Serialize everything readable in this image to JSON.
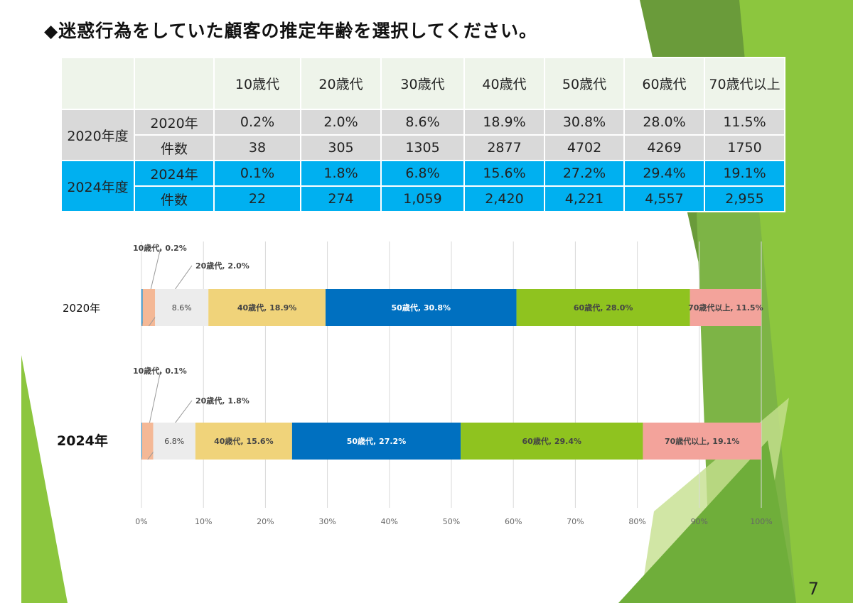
{
  "title": "◆迷惑行為をしていた顧客の推定年齢を選択してください。",
  "page_number": "7",
  "table": {
    "headers": [
      "",
      "",
      "10歳代",
      "20歳代",
      "30歳代",
      "40歳代",
      "50歳代",
      "60歳代",
      "70歳代以上"
    ],
    "groups": [
      {
        "label": "2020年度",
        "rows": [
          [
            "2020年",
            "0.2%",
            "2.0%",
            "8.6%",
            "18.9%",
            "30.8%",
            "28.0%",
            "11.5%"
          ],
          [
            "件数",
            "38",
            "305",
            "1305",
            "2877",
            "4702",
            "4269",
            "1750"
          ]
        ]
      },
      {
        "label": "2024年度",
        "rows": [
          [
            "2024年",
            "0.1%",
            "1.8%",
            "6.8%",
            "15.6%",
            "27.2%",
            "29.4%",
            "19.1%"
          ],
          [
            "件数",
            "22",
            "274",
            "1,059",
            "2,420",
            "4,221",
            "4,557",
            "2,955"
          ]
        ]
      }
    ]
  },
  "chart_data": {
    "type": "bar",
    "orientation": "horizontal",
    "stacked": true,
    "categories": [
      "2020年",
      "2024年"
    ],
    "series": [
      {
        "name": "10歳代",
        "values": [
          0.2,
          0.1
        ],
        "color": "#1f8fd0"
      },
      {
        "name": "20歳代",
        "values": [
          2.0,
          1.8
        ],
        "color": "#f4b896"
      },
      {
        "name": "30歳代",
        "values": [
          8.6,
          6.8
        ],
        "color": "#ececec"
      },
      {
        "name": "40歳代",
        "values": [
          18.9,
          15.6
        ],
        "color": "#f0d37a"
      },
      {
        "name": "50歳代",
        "values": [
          30.8,
          27.2
        ],
        "color": "#0070c0"
      },
      {
        "name": "60歳代",
        "values": [
          28.0,
          29.4
        ],
        "color": "#8fc31f"
      },
      {
        "name": "70歳代以上",
        "values": [
          11.5,
          19.1
        ],
        "color": "#f3a39b"
      }
    ],
    "data_labels": [
      [
        "10歳代, 0.2%",
        "20歳代, 2.0%",
        "8.6%",
        "40歳代, 18.9%",
        "50歳代, 30.8%",
        "60歳代, 28.0%",
        "70歳代以上, 11.5%"
      ],
      [
        "10歳代, 0.1%",
        "20歳代, 1.8%",
        "6.8%",
        "40歳代, 15.6%",
        "50歳代, 27.2%",
        "60歳代, 29.4%",
        "70歳代以上, 19.1%"
      ]
    ],
    "xticks": [
      "0%",
      "10%",
      "20%",
      "30%",
      "40%",
      "50%",
      "60%",
      "70%",
      "80%",
      "90%",
      "100%"
    ],
    "xlim": [
      0,
      100
    ],
    "grid": true,
    "legend": "none"
  }
}
